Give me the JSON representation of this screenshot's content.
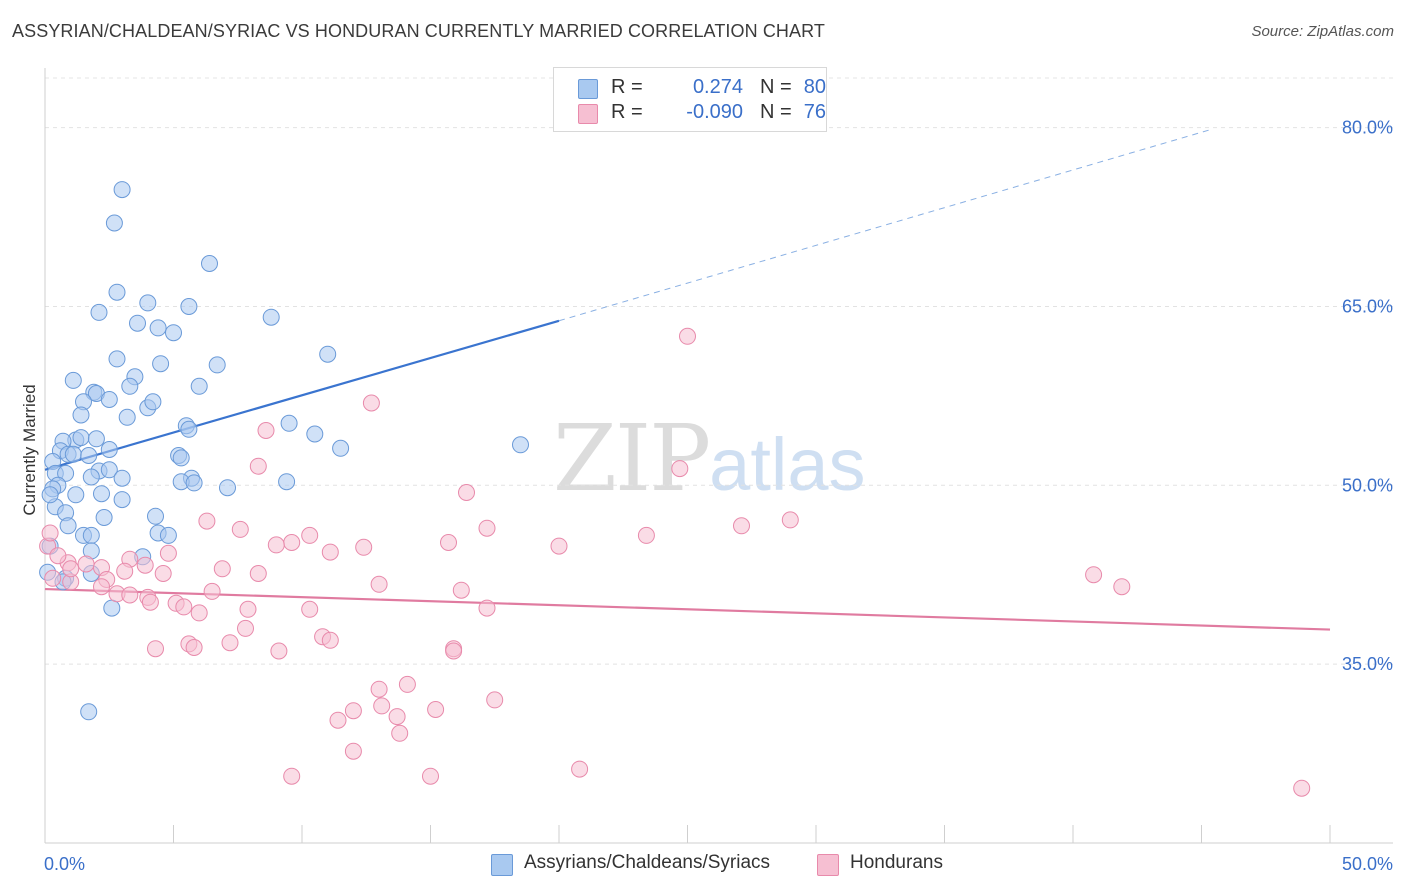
{
  "header": {
    "title": "ASSYRIAN/CHALDEAN/SYRIAC VS HONDURAN CURRENTLY MARRIED CORRELATION CHART",
    "source": "Source: ZipAtlas.com"
  },
  "watermark": {
    "zip": "ZIP",
    "atlas": "atlas"
  },
  "legend": {
    "rows": [
      {
        "r_label": "R =",
        "r_value": "0.274",
        "n_label": "N =",
        "n_value": "80",
        "color": "#a9c9f0",
        "edge": "#6a9ad8"
      },
      {
        "r_label": "R =",
        "r_value": "-0.090",
        "n_label": "N =",
        "n_value": "76",
        "color": "#f6bfd2",
        "edge": "#e88aab"
      }
    ]
  },
  "bottom_legend": [
    {
      "label": "Assyrians/Chaldeans/Syriacs",
      "color": "#a9c9f0",
      "edge": "#6a9ad8"
    },
    {
      "label": "Hondurans",
      "color": "#f6bfd2",
      "edge": "#e88aab"
    }
  ],
  "chart_data": {
    "type": "scatter",
    "title": "ASSYRIAN/CHALDEAN/SYRIAC VS HONDURAN CURRENTLY MARRIED CORRELATION CHART",
    "ylabel": "Currently Married",
    "xlabel": "",
    "xlim": [
      0,
      50
    ],
    "ylim": [
      20,
      85
    ],
    "x_tick_labels": [
      "0.0%",
      "50.0%"
    ],
    "y_ticks": [
      35,
      50,
      65,
      80
    ],
    "y_tick_labels": [
      "35.0%",
      "50.0%",
      "65.0%",
      "80.0%"
    ],
    "grid": true,
    "legend_position": "top-center",
    "series": [
      {
        "name": "Assyrians/Chaldeans/Syriacs",
        "color": "#6a9ad8",
        "fill": "#a9c9f0",
        "trend": {
          "x": [
            0,
            20
          ],
          "y": [
            51.3,
            63.8
          ],
          "dashed_to": [
            45.3,
            79.8
          ]
        },
        "points": [
          [
            3.0,
            74.8
          ],
          [
            2.7,
            72.0
          ],
          [
            6.4,
            68.6
          ],
          [
            2.8,
            66.2
          ],
          [
            4.0,
            65.3
          ],
          [
            2.1,
            64.5
          ],
          [
            5.6,
            65.0
          ],
          [
            8.8,
            64.1
          ],
          [
            3.6,
            63.6
          ],
          [
            4.4,
            63.2
          ],
          [
            5.0,
            62.8
          ],
          [
            11.0,
            61.0
          ],
          [
            2.8,
            60.6
          ],
          [
            4.5,
            60.2
          ],
          [
            6.7,
            60.1
          ],
          [
            1.1,
            58.8
          ],
          [
            3.5,
            59.1
          ],
          [
            6.0,
            58.3
          ],
          [
            3.3,
            58.3
          ],
          [
            1.9,
            57.8
          ],
          [
            2.0,
            57.7
          ],
          [
            1.5,
            57.0
          ],
          [
            4.0,
            56.5
          ],
          [
            1.4,
            55.9
          ],
          [
            3.2,
            55.7
          ],
          [
            9.5,
            55.2
          ],
          [
            5.5,
            55.0
          ],
          [
            5.6,
            54.7
          ],
          [
            10.5,
            54.3
          ],
          [
            1.2,
            53.8
          ],
          [
            0.7,
            53.7
          ],
          [
            1.4,
            54.0
          ],
          [
            2.0,
            53.9
          ],
          [
            0.6,
            52.9
          ],
          [
            2.5,
            53.0
          ],
          [
            11.5,
            53.1
          ],
          [
            0.9,
            52.6
          ],
          [
            1.1,
            52.6
          ],
          [
            1.7,
            52.5
          ],
          [
            0.3,
            52.0
          ],
          [
            5.2,
            52.5
          ],
          [
            5.3,
            52.3
          ],
          [
            2.1,
            51.2
          ],
          [
            2.5,
            51.3
          ],
          [
            0.4,
            51.0
          ],
          [
            0.8,
            51.0
          ],
          [
            1.8,
            50.7
          ],
          [
            5.7,
            50.6
          ],
          [
            3.0,
            50.6
          ],
          [
            5.3,
            50.3
          ],
          [
            9.4,
            50.3
          ],
          [
            0.5,
            50.0
          ],
          [
            0.3,
            49.7
          ],
          [
            7.1,
            49.8
          ],
          [
            1.2,
            49.2
          ],
          [
            2.2,
            49.3
          ],
          [
            3.0,
            48.8
          ],
          [
            0.4,
            48.2
          ],
          [
            0.8,
            47.7
          ],
          [
            2.3,
            47.3
          ],
          [
            4.3,
            47.4
          ],
          [
            0.9,
            46.6
          ],
          [
            1.5,
            45.8
          ],
          [
            4.4,
            46.0
          ],
          [
            4.8,
            45.8
          ],
          [
            1.8,
            45.8
          ],
          [
            0.2,
            44.9
          ],
          [
            1.8,
            44.5
          ],
          [
            18.5,
            53.4
          ],
          [
            3.8,
            44.0
          ],
          [
            0.1,
            42.7
          ],
          [
            0.8,
            42.2
          ],
          [
            1.8,
            42.6
          ],
          [
            2.6,
            39.7
          ],
          [
            1.7,
            31.0
          ],
          [
            0.7,
            41.9
          ],
          [
            0.2,
            49.2
          ],
          [
            5.8,
            50.2
          ],
          [
            2.5,
            57.2
          ],
          [
            4.2,
            57.0
          ]
        ]
      },
      {
        "name": "Hondurans",
        "color": "#e88aab",
        "fill": "#f6bfd2",
        "trend": {
          "x": [
            0,
            50
          ],
          "y": [
            41.3,
            37.9
          ]
        },
        "points": [
          [
            25.0,
            62.5
          ],
          [
            12.7,
            56.9
          ],
          [
            8.6,
            54.6
          ],
          [
            24.7,
            51.4
          ],
          [
            8.3,
            51.6
          ],
          [
            16.4,
            49.4
          ],
          [
            29.0,
            47.1
          ],
          [
            6.3,
            47.0
          ],
          [
            27.1,
            46.6
          ],
          [
            7.6,
            46.3
          ],
          [
            17.2,
            46.4
          ],
          [
            10.3,
            45.8
          ],
          [
            9.6,
            45.2
          ],
          [
            9.0,
            45.0
          ],
          [
            15.7,
            45.2
          ],
          [
            23.4,
            45.8
          ],
          [
            20.0,
            44.9
          ],
          [
            12.4,
            44.8
          ],
          [
            0.1,
            44.9
          ],
          [
            11.1,
            44.4
          ],
          [
            4.8,
            44.3
          ],
          [
            3.3,
            43.8
          ],
          [
            0.9,
            43.5
          ],
          [
            1.6,
            43.4
          ],
          [
            3.9,
            43.3
          ],
          [
            2.2,
            43.1
          ],
          [
            6.9,
            43.0
          ],
          [
            3.1,
            42.8
          ],
          [
            4.6,
            42.6
          ],
          [
            8.3,
            42.6
          ],
          [
            0.3,
            42.2
          ],
          [
            2.4,
            42.1
          ],
          [
            1.0,
            41.9
          ],
          [
            13.0,
            41.7
          ],
          [
            40.8,
            42.5
          ],
          [
            41.9,
            41.5
          ],
          [
            6.5,
            41.1
          ],
          [
            16.2,
            41.2
          ],
          [
            2.8,
            40.9
          ],
          [
            3.3,
            40.8
          ],
          [
            4.0,
            40.6
          ],
          [
            4.1,
            40.2
          ],
          [
            5.1,
            40.1
          ],
          [
            5.4,
            39.8
          ],
          [
            6.0,
            39.3
          ],
          [
            7.9,
            39.6
          ],
          [
            10.3,
            39.6
          ],
          [
            17.2,
            39.7
          ],
          [
            7.8,
            38.0
          ],
          [
            10.8,
            37.3
          ],
          [
            11.1,
            37.0
          ],
          [
            5.6,
            36.7
          ],
          [
            5.8,
            36.4
          ],
          [
            7.2,
            36.8
          ],
          [
            4.3,
            36.3
          ],
          [
            9.1,
            36.1
          ],
          [
            15.9,
            36.3
          ],
          [
            15.9,
            36.1
          ],
          [
            14.1,
            33.3
          ],
          [
            13.0,
            32.9
          ],
          [
            13.1,
            31.5
          ],
          [
            15.2,
            31.2
          ],
          [
            17.5,
            32.0
          ],
          [
            12.0,
            31.1
          ],
          [
            11.4,
            30.3
          ],
          [
            13.7,
            30.6
          ],
          [
            13.8,
            29.2
          ],
          [
            12.0,
            27.7
          ],
          [
            9.6,
            25.6
          ],
          [
            15.0,
            25.6
          ],
          [
            20.8,
            26.2
          ],
          [
            48.9,
            24.6
          ],
          [
            0.2,
            46.0
          ],
          [
            0.5,
            44.1
          ],
          [
            1.0,
            43.0
          ],
          [
            2.2,
            41.5
          ]
        ]
      }
    ]
  }
}
